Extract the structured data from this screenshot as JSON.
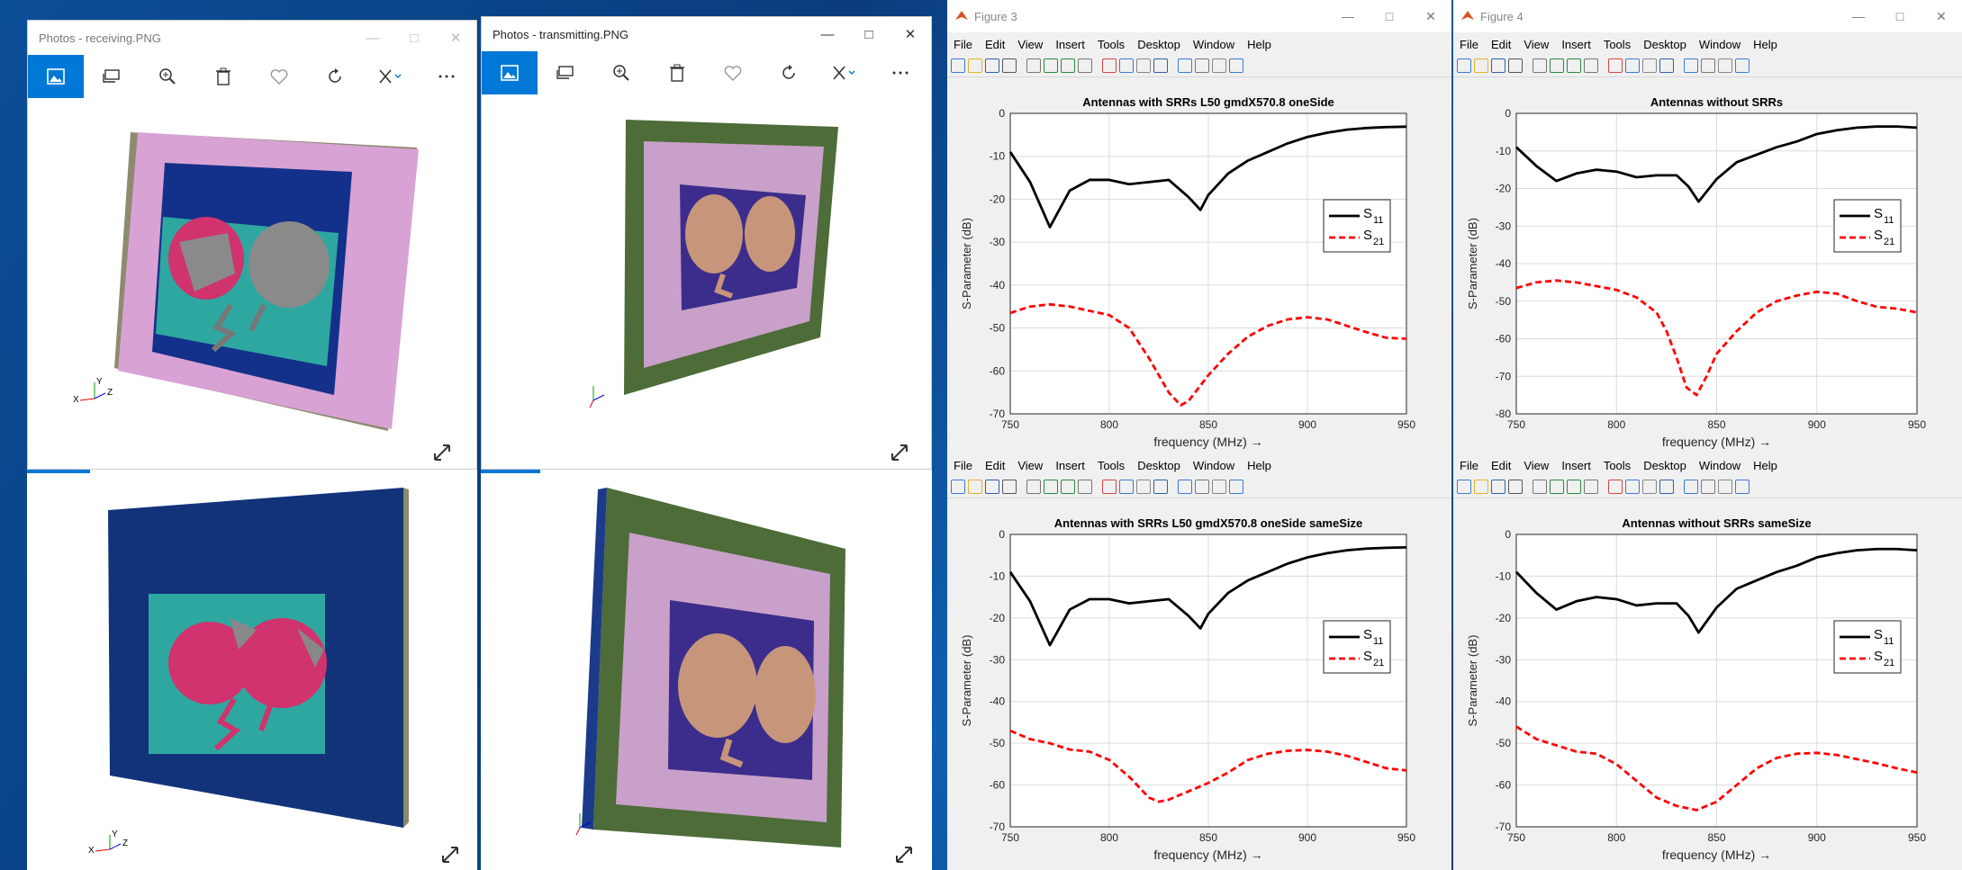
{
  "photos_receiving": {
    "title": "Photos - receiving.PNG"
  },
  "photos_transmitting": {
    "title": "Photos - transmitting.PNG"
  },
  "photo_toolbar": [
    "image-icon",
    "slideshow-icon",
    "zoom-icon",
    "delete-icon",
    "favorite-icon",
    "rotate-icon",
    "edit-icon",
    "more-icon"
  ],
  "axis_triad": {
    "y": "Y",
    "x": "X",
    "z": "Z"
  },
  "matlab_menu": [
    "File",
    "Edit",
    "View",
    "Insert",
    "Tools",
    "Desktop",
    "Window",
    "Help"
  ],
  "figure3": {
    "title": "Figure 3"
  },
  "figure4": {
    "title": "Figure 4"
  },
  "plot_common": {
    "ylabel": "S-Parameter (dB)",
    "xlabel": "frequency (MHz) →",
    "legend_s11": "S",
    "legend_s11_sub": "11",
    "legend_s21": "S",
    "legend_s21_sub": "21"
  },
  "colors": {
    "s11": "#000000",
    "s21": "#ff0000",
    "photo_accent": "#0078d7"
  },
  "chart_data": [
    {
      "type": "line",
      "title": "Antennas with SRRs L50 gmdX570.8 oneSide",
      "xlim": [
        750,
        950
      ],
      "ylim": [
        -70,
        0
      ],
      "xticks": [
        750,
        800,
        850,
        900,
        950
      ],
      "yticks": [
        0,
        -10,
        -20,
        -30,
        -40,
        -50,
        -60,
        -70
      ],
      "grid": true,
      "legend": "right",
      "series": [
        {
          "name": "S11",
          "x": [
            750,
            760,
            770,
            780,
            790,
            800,
            810,
            820,
            830,
            840,
            846,
            850,
            860,
            870,
            880,
            890,
            900,
            910,
            920,
            930,
            940,
            950
          ],
          "values": [
            -9,
            -16,
            -26.5,
            -18,
            -15.5,
            -15.5,
            -16.5,
            -16,
            -15.5,
            -19.5,
            -22.5,
            -19,
            -14,
            -11,
            -9,
            -7,
            -5.5,
            -4.5,
            -3.8,
            -3.4,
            -3.2,
            -3.1
          ]
        },
        {
          "name": "S21",
          "x": [
            750,
            760,
            770,
            780,
            790,
            800,
            810,
            820,
            830,
            836,
            840,
            850,
            860,
            870,
            880,
            890,
            900,
            910,
            920,
            930,
            940,
            950
          ],
          "values": [
            -46.5,
            -45,
            -44.5,
            -45,
            -46,
            -47,
            -50,
            -57,
            -65,
            -68,
            -67,
            -61,
            -56,
            -52,
            -49.5,
            -48,
            -47.5,
            -48,
            -49.5,
            -51,
            -52.3,
            -52.5
          ]
        }
      ]
    },
    {
      "type": "line",
      "title": "Antennas without SRRs",
      "xlim": [
        750,
        950
      ],
      "ylim": [
        -80,
        0
      ],
      "xticks": [
        750,
        800,
        850,
        900,
        950
      ],
      "yticks": [
        0,
        -10,
        -20,
        -30,
        -40,
        -50,
        -60,
        -70,
        -80
      ],
      "grid": true,
      "legend": "right",
      "series": [
        {
          "name": "S11",
          "x": [
            750,
            760,
            770,
            780,
            790,
            800,
            810,
            820,
            830,
            836,
            841,
            850,
            860,
            870,
            880,
            890,
            900,
            910,
            920,
            930,
            940,
            950
          ],
          "values": [
            -9,
            -14,
            -18,
            -16,
            -15,
            -15.5,
            -17,
            -16.5,
            -16.5,
            -19.5,
            -23.5,
            -17.5,
            -13,
            -11,
            -9,
            -7.5,
            -5.5,
            -4.5,
            -3.8,
            -3.5,
            -3.5,
            -3.8
          ]
        },
        {
          "name": "S21",
          "x": [
            750,
            760,
            770,
            780,
            790,
            800,
            810,
            820,
            825,
            830,
            835,
            840,
            845,
            850,
            860,
            870,
            880,
            890,
            900,
            910,
            920,
            930,
            940,
            950
          ],
          "values": [
            -46.5,
            -45,
            -44.5,
            -45,
            -46,
            -47,
            -49,
            -53,
            -58,
            -65,
            -73,
            -75,
            -70,
            -64,
            -58,
            -53,
            -50,
            -48.5,
            -47.5,
            -48,
            -50,
            -51.5,
            -52,
            -53
          ]
        }
      ]
    },
    {
      "type": "line",
      "title": "Antennas with SRRs L50 gmdX570.8 oneSide sameSize",
      "xlim": [
        750,
        950
      ],
      "ylim": [
        -70,
        0
      ],
      "xticks": [
        750,
        800,
        850,
        900,
        950
      ],
      "yticks": [
        0,
        -10,
        -20,
        -30,
        -40,
        -50,
        -60,
        -70
      ],
      "grid": true,
      "legend": "right",
      "series": [
        {
          "name": "S11",
          "x": [
            750,
            760,
            770,
            780,
            790,
            800,
            810,
            820,
            830,
            840,
            846,
            850,
            860,
            870,
            880,
            890,
            900,
            910,
            920,
            930,
            940,
            950
          ],
          "values": [
            -9,
            -16,
            -26.5,
            -18,
            -15.5,
            -15.5,
            -16.5,
            -16,
            -15.5,
            -19.5,
            -22.5,
            -19,
            -14,
            -11,
            -9,
            -7,
            -5.5,
            -4.5,
            -3.8,
            -3.4,
            -3.2,
            -3.1
          ]
        },
        {
          "name": "S21",
          "x": [
            750,
            760,
            770,
            780,
            790,
            800,
            810,
            820,
            825,
            830,
            840,
            850,
            860,
            870,
            880,
            890,
            900,
            910,
            920,
            930,
            940,
            950
          ],
          "values": [
            -47,
            -49,
            -50,
            -51.5,
            -52,
            -54,
            -58,
            -63,
            -64,
            -63.5,
            -61.5,
            -59.5,
            -57,
            -54,
            -52.5,
            -51.8,
            -51.6,
            -52,
            -53,
            -54.5,
            -56,
            -56.5
          ]
        }
      ]
    },
    {
      "type": "line",
      "title": "Antennas without SRRs sameSize",
      "xlim": [
        750,
        950
      ],
      "ylim": [
        -70,
        0
      ],
      "xticks": [
        750,
        800,
        850,
        900,
        950
      ],
      "yticks": [
        0,
        -10,
        -20,
        -30,
        -40,
        -50,
        -60,
        -70
      ],
      "grid": true,
      "legend": "right",
      "series": [
        {
          "name": "S11",
          "x": [
            750,
            760,
            770,
            780,
            790,
            800,
            810,
            820,
            830,
            836,
            841,
            850,
            860,
            870,
            880,
            890,
            900,
            910,
            920,
            930,
            940,
            950
          ],
          "values": [
            -9,
            -14,
            -18,
            -16,
            -15,
            -15.5,
            -17,
            -16.5,
            -16.5,
            -19.5,
            -23.5,
            -17.5,
            -13,
            -11,
            -9,
            -7.5,
            -5.5,
            -4.5,
            -3.8,
            -3.5,
            -3.5,
            -3.8
          ]
        },
        {
          "name": "S21",
          "x": [
            750,
            760,
            770,
            780,
            790,
            800,
            810,
            820,
            830,
            835,
            840,
            850,
            860,
            870,
            880,
            890,
            900,
            910,
            920,
            930,
            940,
            950
          ],
          "values": [
            -46,
            -49,
            -50.5,
            -52,
            -52.5,
            -55,
            -59,
            -63,
            -65,
            -65.5,
            -66,
            -64,
            -60,
            -56,
            -53.5,
            -52.5,
            -52.3,
            -52.8,
            -53.8,
            -54.8,
            -56,
            -57
          ]
        }
      ]
    }
  ]
}
